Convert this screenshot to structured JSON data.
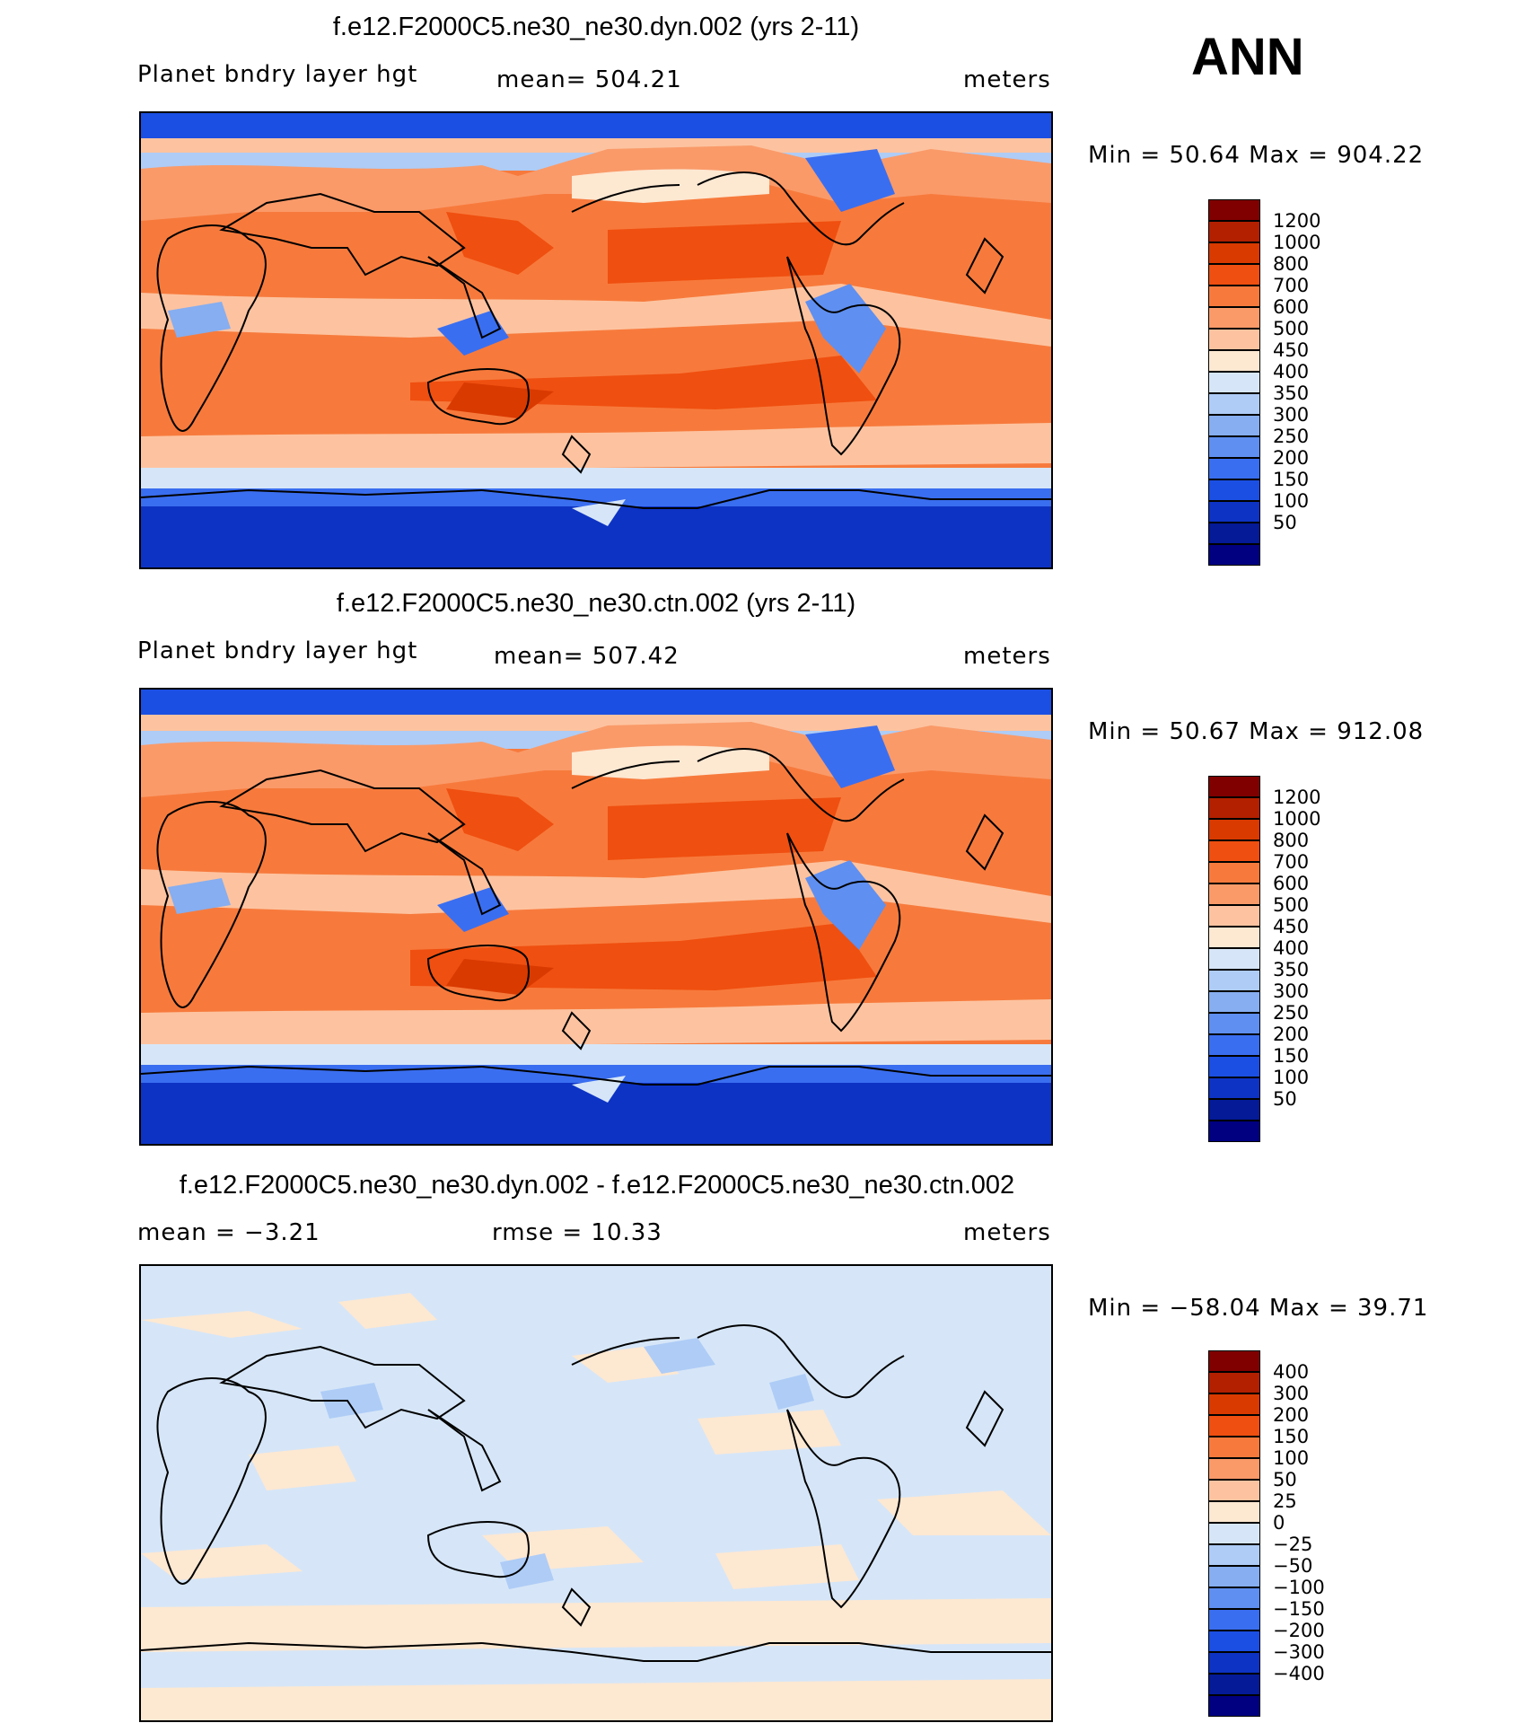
{
  "season": "ANN",
  "panels": [
    {
      "id": "dyn",
      "title": "f.e12.F2000C5.ne30_ne30.dyn.002 (yrs 2-11)",
      "variable": "Planet bndry layer hgt",
      "stat": "mean=  504.21",
      "units": "meters",
      "minmax": "Min =   50.64 Max = 904.22",
      "scale": "abs"
    },
    {
      "id": "ctn",
      "title": "f.e12.F2000C5.ne30_ne30.ctn.002 (yrs 2-11)",
      "variable": "Planet bndry layer hgt",
      "stat": "mean=  507.42",
      "units": "meters",
      "minmax": "Min =   50.67 Max = 912.08",
      "scale": "abs"
    },
    {
      "id": "diff",
      "title": "f.e12.F2000C5.ne30_ne30.dyn.002 - f.e12.F2000C5.ne30_ne30.ctn.002",
      "variable": "mean =   −3.21",
      "stat": "rmse =   10.33",
      "units": "meters",
      "minmax": "Min = −58.04 Max =   39.71",
      "scale": "diff"
    }
  ],
  "colorbar_abs": {
    "colors": [
      "#800000",
      "#b22000",
      "#d93a00",
      "#ef4f10",
      "#f77a3c",
      "#fa9a69",
      "#fdc3a0",
      "#fde8d2",
      "#d6e6f8",
      "#aeccf6",
      "#86aef0",
      "#5f8ff0",
      "#3a6ef0",
      "#1b4fe3",
      "#0d33c4",
      "#041a96",
      "#000080"
    ],
    "labels": [
      "1200",
      "1000",
      "800",
      "700",
      "600",
      "500",
      "450",
      "400",
      "350",
      "300",
      "250",
      "200",
      "150",
      "100",
      "50"
    ]
  },
  "colorbar_diff": {
    "colors": [
      "#800000",
      "#b22000",
      "#d93a00",
      "#ef4f10",
      "#f77a3c",
      "#fa9a69",
      "#fdc3a0",
      "#fde8d2",
      "#d6e6f8",
      "#aeccf6",
      "#86aef0",
      "#5f8ff0",
      "#3a6ef0",
      "#1b4fe3",
      "#0d33c4",
      "#041a96",
      "#000080"
    ],
    "labels": [
      "400",
      "300",
      "200",
      "150",
      "100",
      "50",
      "25",
      "0",
      "−25",
      "−50",
      "−100",
      "−150",
      "−200",
      "−300",
      "−400"
    ]
  }
}
